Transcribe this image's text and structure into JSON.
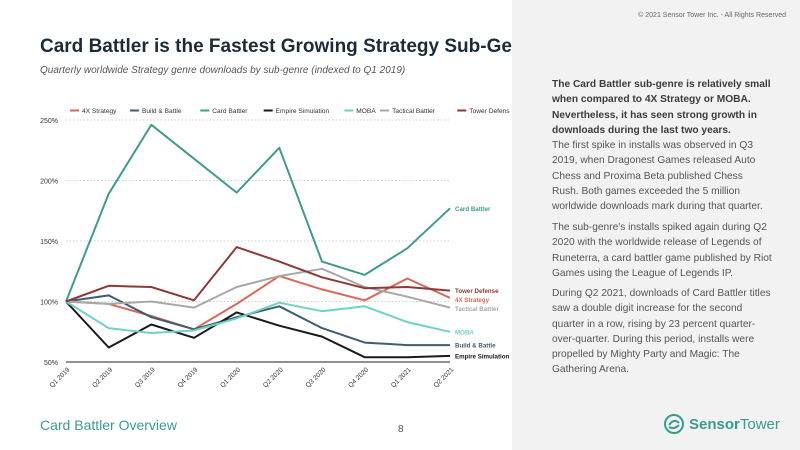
{
  "copyright": "© 2021 Sensor Tower Inc. - All Rights Reserved",
  "title": "Card Battler is the Fastest Growing Strategy Sub-Genre",
  "subtitle": "Quarterly worldwide Strategy genre downloads by sub-genre (indexed to Q1 2019)",
  "footer": {
    "section": "Card Battler Overview",
    "page": "8",
    "brand_bold": "Sensor",
    "brand_rest": "Tower"
  },
  "right_panel": {
    "lead": "The Card Battler sub-genre is relatively small when compared to 4X Strategy or MOBA. Nevertheless, it has seen strong growth in downloads during the last two years.",
    "p1": "The first spike in installs was observed in Q3 2019, when Dragonest Games released Auto Chess and Proxima Beta published Chess Rush. Both games exceeded the 5 million worldwide downloads mark during that quarter.",
    "p2": "The sub-genre's installs spiked again during Q2 2020 with the worldwide release of Legends of Runeterra, a card battler game published by Riot Games using the League of Legends IP.",
    "p3": "During Q2 2021, downloads of Card Battler titles saw a double digit increase for the second quarter in a row, rising by 23 percent quarter-over-quarter. During this period, installs were propelled by Mighty Party and Magic: The Gathering Arena."
  },
  "colors": {
    "accent": "#3a9b8f",
    "title": "#1c2b39",
    "panel": "#f2f2f2"
  },
  "chart_data": {
    "type": "line",
    "categories": [
      "Q1 2019",
      "Q2 2019",
      "Q3 2019",
      "Q4 2019",
      "Q1 2020",
      "Q2 2020",
      "Q3 2020",
      "Q4 2020",
      "Q1 2021",
      "Q2 2021"
    ],
    "ylim": [
      50,
      250
    ],
    "yticks": [
      50,
      100,
      150,
      200,
      250
    ],
    "ytick_labels": [
      "50%",
      "100%",
      "150%",
      "200%",
      "250%"
    ],
    "grid": true,
    "legend_position": "top",
    "series": [
      {
        "name": "4X Strategy",
        "color": "#d9675a",
        "values": [
          100,
          98,
          88,
          77,
          98,
          121,
          110,
          101,
          119,
          103
        ],
        "end_label": "4X Strategy"
      },
      {
        "name": "Build & Battle",
        "color": "#3f5d71",
        "values": [
          100,
          105,
          87,
          77,
          87,
          96,
          78,
          66,
          64,
          64
        ],
        "end_label": "Build & Battle"
      },
      {
        "name": "Card Battler",
        "color": "#3e9b8d",
        "values": [
          100,
          189,
          246,
          218,
          190,
          227,
          133,
          122,
          144,
          177
        ],
        "end_label": "Card Battler"
      },
      {
        "name": "Empire Simulation",
        "color": "#1a1a1a",
        "values": [
          100,
          62,
          81,
          70,
          91,
          80,
          71,
          54,
          54,
          55
        ],
        "end_label": "Empire Simulation"
      },
      {
        "name": "MOBA",
        "color": "#6fd2c6",
        "values": [
          100,
          78,
          74,
          76,
          86,
          99,
          92,
          96,
          83,
          75
        ],
        "end_label": "MOBA"
      },
      {
        "name": "Tactical Battler",
        "color": "#a8a8a8",
        "values": [
          100,
          98,
          100,
          95,
          112,
          121,
          127,
          112,
          104,
          95
        ],
        "end_label": "Tactical Battler"
      },
      {
        "name": "Tower Defense",
        "color": "#8c3a35",
        "values": [
          100,
          113,
          112,
          101,
          145,
          133,
          120,
          111,
          112,
          109
        ],
        "end_label": "Tower Defense"
      }
    ]
  }
}
